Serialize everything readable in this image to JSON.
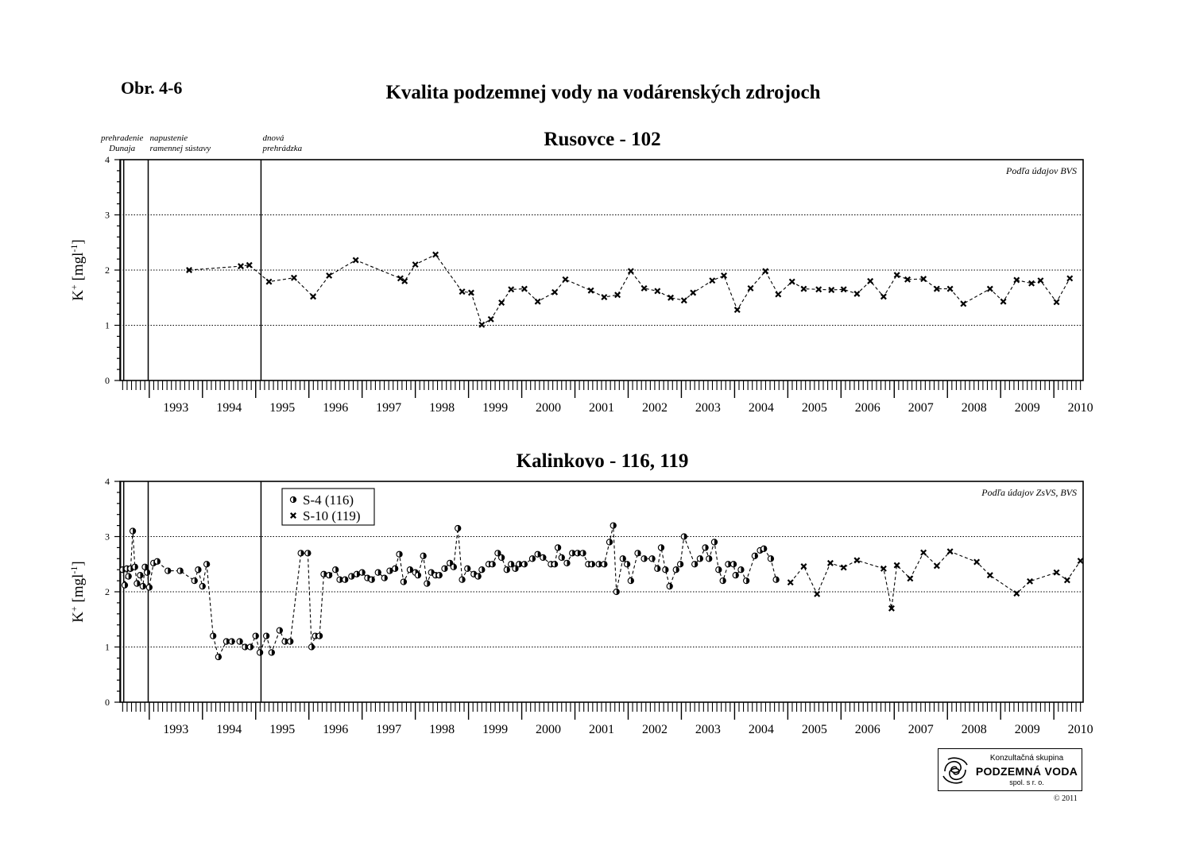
{
  "header": {
    "figure_label": "Obr. 4-6",
    "title": "Kvalita podzemnej vody na vodárenských zdrojoch"
  },
  "logo": {
    "line1": "Konzultačná skupina",
    "line2": "PODZEMNÁ VODA",
    "line3": "spol. s r. o.",
    "icon": "aquifer-logo-icon"
  },
  "copyright": "© 2011",
  "colors": {
    "ink": "#000000",
    "background": "#ffffff"
  },
  "chart_data": [
    {
      "type": "line",
      "title": "Rusovce - 102",
      "ylabel": "K",
      "ylabel_sup": "+",
      "ylabel_unit": "[mgl",
      "ylabel_unit_sup": "-1",
      "ylabel_tail": "]",
      "ylim": [
        0,
        4
      ],
      "yticks": [
        "0",
        "1",
        "2",
        "3",
        "4"
      ],
      "xlim": [
        1992.45,
        2010.55
      ],
      "xticks": [
        "1993",
        "1994",
        "1995",
        "1996",
        "1997",
        "1998",
        "1999",
        "2000",
        "2001",
        "2002",
        "2003",
        "2004",
        "2005",
        "2006",
        "2007",
        "2008",
        "2009",
        "2010"
      ],
      "grid": "horizontal-dotted",
      "source_note": "Podľa údajov BVS",
      "events": [
        {
          "x": 1992.52,
          "line1": "prehradenie",
          "line2": "Dunaja"
        },
        {
          "x": 1992.98,
          "line1": "napustenie",
          "line2": "ramennej sústavy"
        },
        {
          "x": 1995.1,
          "line1": "dnová",
          "line2": "prehrádzka"
        }
      ],
      "legend": [],
      "series": [
        {
          "marker": "cross",
          "line": "dashed",
          "points": [
            [
              1993.75,
              2.0
            ],
            [
              1994.72,
              2.07
            ],
            [
              1994.88,
              2.09
            ],
            [
              1995.25,
              1.79
            ],
            [
              1995.72,
              1.86
            ],
            [
              1996.08,
              1.52
            ],
            [
              1996.38,
              1.9
            ],
            [
              1996.88,
              2.18
            ],
            [
              1997.72,
              1.85
            ],
            [
              1997.8,
              1.8
            ],
            [
              1998.0,
              2.1
            ],
            [
              1998.38,
              2.28
            ],
            [
              1998.88,
              1.61
            ],
            [
              1999.05,
              1.59
            ],
            [
              1999.25,
              1.01
            ],
            [
              1999.42,
              1.11
            ],
            [
              1999.62,
              1.41
            ],
            [
              1999.8,
              1.65
            ],
            [
              2000.05,
              1.66
            ],
            [
              2000.3,
              1.43
            ],
            [
              2000.62,
              1.6
            ],
            [
              2000.82,
              1.83
            ],
            [
              2001.3,
              1.63
            ],
            [
              2001.55,
              1.51
            ],
            [
              2001.8,
              1.55
            ],
            [
              2002.05,
              1.98
            ],
            [
              2002.3,
              1.67
            ],
            [
              2002.55,
              1.62
            ],
            [
              2002.8,
              1.5
            ],
            [
              2003.05,
              1.45
            ],
            [
              2003.22,
              1.59
            ],
            [
              2003.58,
              1.81
            ],
            [
              2003.8,
              1.9
            ],
            [
              2004.05,
              1.28
            ],
            [
              2004.3,
              1.67
            ],
            [
              2004.58,
              1.98
            ],
            [
              2004.82,
              1.56
            ],
            [
              2005.08,
              1.79
            ],
            [
              2005.3,
              1.66
            ],
            [
              2005.58,
              1.65
            ],
            [
              2005.82,
              1.64
            ],
            [
              2006.05,
              1.65
            ],
            [
              2006.3,
              1.57
            ],
            [
              2006.55,
              1.8
            ],
            [
              2006.8,
              1.52
            ],
            [
              2007.05,
              1.91
            ],
            [
              2007.25,
              1.83
            ],
            [
              2007.55,
              1.84
            ],
            [
              2007.8,
              1.66
            ],
            [
              2008.05,
              1.66
            ],
            [
              2008.3,
              1.39
            ],
            [
              2008.8,
              1.66
            ],
            [
              2009.05,
              1.43
            ],
            [
              2009.3,
              1.82
            ],
            [
              2009.58,
              1.76
            ],
            [
              2009.75,
              1.81
            ],
            [
              2010.05,
              1.42
            ],
            [
              2010.3,
              1.85
            ]
          ]
        }
      ]
    },
    {
      "type": "line",
      "title": "Kalinkovo - 116, 119",
      "ylabel": "K",
      "ylabel_sup": "+",
      "ylabel_unit": "[mgl",
      "ylabel_unit_sup": "-1",
      "ylabel_tail": "]",
      "ylim": [
        0,
        4
      ],
      "yticks": [
        "0",
        "1",
        "2",
        "3",
        "4"
      ],
      "xlim": [
        1992.45,
        2010.55
      ],
      "xticks": [
        "1993",
        "1994",
        "1995",
        "1996",
        "1997",
        "1998",
        "1999",
        "2000",
        "2001",
        "2002",
        "2003",
        "2004",
        "2005",
        "2006",
        "2007",
        "2008",
        "2009",
        "2010"
      ],
      "grid": "horizontal-dotted",
      "source_note": "Podľa údajov ZsVS, BVS",
      "events": [
        {
          "x": 1992.52
        },
        {
          "x": 1992.98
        },
        {
          "x": 1995.1
        }
      ],
      "legend": [
        "S-4 (116)",
        "S-10 (119)"
      ],
      "series": [
        {
          "name": "S-4 (116)",
          "marker": "half-circle",
          "line": "dashed",
          "points": [
            [
              1992.5,
              2.4
            ],
            [
              1992.54,
              2.12
            ],
            [
              1992.58,
              2.42
            ],
            [
              1992.61,
              2.28
            ],
            [
              1992.65,
              2.42
            ],
            [
              1992.69,
              3.1
            ],
            [
              1992.73,
              2.45
            ],
            [
              1992.77,
              2.15
            ],
            [
              1992.83,
              2.3
            ],
            [
              1992.88,
              2.1
            ],
            [
              1992.92,
              2.45
            ],
            [
              1992.96,
              2.35
            ],
            [
              1993.0,
              2.08
            ],
            [
              1993.08,
              2.52
            ],
            [
              1993.15,
              2.55
            ],
            [
              1993.35,
              2.38
            ],
            [
              1993.58,
              2.38
            ],
            [
              1993.85,
              2.2
            ],
            [
              1993.92,
              2.4
            ],
            [
              1994.0,
              2.1
            ],
            [
              1994.08,
              2.5
            ],
            [
              1994.2,
              1.2
            ],
            [
              1994.3,
              0.82
            ],
            [
              1994.45,
              1.1
            ],
            [
              1994.55,
              1.1
            ],
            [
              1994.7,
              1.1
            ],
            [
              1994.8,
              1.0
            ],
            [
              1994.9,
              1.0
            ],
            [
              1995.0,
              1.2
            ],
            [
              1995.08,
              0.9
            ],
            [
              1995.2,
              1.2
            ],
            [
              1995.3,
              0.9
            ],
            [
              1995.45,
              1.3
            ],
            [
              1995.55,
              1.1
            ],
            [
              1995.65,
              1.1
            ],
            [
              1995.85,
              2.7
            ],
            [
              1995.98,
              2.7
            ],
            [
              1996.05,
              1.0
            ],
            [
              1996.12,
              1.2
            ],
            [
              1996.2,
              1.2
            ],
            [
              1996.28,
              2.32
            ],
            [
              1996.38,
              2.3
            ],
            [
              1996.5,
              2.4
            ],
            [
              1996.58,
              2.22
            ],
            [
              1996.68,
              2.22
            ],
            [
              1996.8,
              2.28
            ],
            [
              1996.9,
              2.32
            ],
            [
              1997.0,
              2.35
            ],
            [
              1997.1,
              2.25
            ],
            [
              1997.18,
              2.22
            ],
            [
              1997.3,
              2.35
            ],
            [
              1997.42,
              2.25
            ],
            [
              1997.52,
              2.38
            ],
            [
              1997.62,
              2.42
            ],
            [
              1997.7,
              2.68
            ],
            [
              1997.78,
              2.18
            ],
            [
              1997.9,
              2.4
            ],
            [
              1998.0,
              2.35
            ],
            [
              1998.05,
              2.3
            ],
            [
              1998.15,
              2.65
            ],
            [
              1998.22,
              2.15
            ],
            [
              1998.3,
              2.35
            ],
            [
              1998.38,
              2.3
            ],
            [
              1998.45,
              2.3
            ],
            [
              1998.55,
              2.42
            ],
            [
              1998.65,
              2.52
            ],
            [
              1998.72,
              2.45
            ],
            [
              1998.8,
              3.15
            ],
            [
              1998.88,
              2.22
            ],
            [
              1998.98,
              2.42
            ],
            [
              1999.1,
              2.32
            ],
            [
              1999.18,
              2.28
            ],
            [
              1999.25,
              2.4
            ],
            [
              1999.38,
              2.5
            ],
            [
              1999.45,
              2.5
            ],
            [
              1999.55,
              2.7
            ],
            [
              1999.62,
              2.62
            ],
            [
              1999.72,
              2.4
            ],
            [
              1999.8,
              2.5
            ],
            [
              1999.88,
              2.42
            ],
            [
              1999.95,
              2.5
            ],
            [
              2000.05,
              2.5
            ],
            [
              2000.2,
              2.6
            ],
            [
              2000.3,
              2.68
            ],
            [
              2000.4,
              2.62
            ],
            [
              2000.55,
              2.5
            ],
            [
              2000.62,
              2.5
            ],
            [
              2000.68,
              2.8
            ],
            [
              2000.75,
              2.62
            ],
            [
              2000.85,
              2.52
            ],
            [
              2000.95,
              2.7
            ],
            [
              2001.05,
              2.7
            ],
            [
              2001.15,
              2.7
            ],
            [
              2001.25,
              2.5
            ],
            [
              2001.32,
              2.5
            ],
            [
              2001.45,
              2.5
            ],
            [
              2001.55,
              2.5
            ],
            [
              2001.65,
              2.9
            ],
            [
              2001.72,
              3.2
            ],
            [
              2001.78,
              2.0
            ],
            [
              2001.9,
              2.6
            ],
            [
              2001.98,
              2.5
            ],
            [
              2002.05,
              2.2
            ],
            [
              2002.18,
              2.7
            ],
            [
              2002.3,
              2.6
            ],
            [
              2002.45,
              2.6
            ],
            [
              2002.55,
              2.42
            ],
            [
              2002.62,
              2.8
            ],
            [
              2002.7,
              2.4
            ],
            [
              2002.78,
              2.1
            ],
            [
              2002.9,
              2.4
            ],
            [
              2002.98,
              2.5
            ],
            [
              2003.05,
              3.0
            ],
            [
              2003.25,
              2.5
            ],
            [
              2003.35,
              2.6
            ],
            [
              2003.45,
              2.8
            ],
            [
              2003.52,
              2.6
            ],
            [
              2003.62,
              2.9
            ],
            [
              2003.7,
              2.4
            ],
            [
              2003.78,
              2.2
            ],
            [
              2003.88,
              2.5
            ],
            [
              2003.98,
              2.5
            ],
            [
              2004.02,
              2.3
            ],
            [
              2004.12,
              2.4
            ],
            [
              2004.22,
              2.2
            ],
            [
              2004.38,
              2.65
            ],
            [
              2004.48,
              2.75
            ],
            [
              2004.55,
              2.78
            ],
            [
              2004.68,
              2.6
            ],
            [
              2004.78,
              2.22
            ]
          ]
        },
        {
          "name": "S-10 (119)",
          "marker": "cross",
          "line": "dashed",
          "points": [
            [
              2005.05,
              2.17
            ],
            [
              2005.3,
              2.46
            ],
            [
              2005.55,
              1.96
            ],
            [
              2005.8,
              2.52
            ],
            [
              2006.05,
              2.44
            ],
            [
              2006.3,
              2.57
            ],
            [
              2006.8,
              2.42
            ],
            [
              2006.95,
              1.7
            ],
            [
              2007.05,
              2.48
            ],
            [
              2007.3,
              2.24
            ],
            [
              2007.55,
              2.71
            ],
            [
              2007.8,
              2.47
            ],
            [
              2008.05,
              2.73
            ],
            [
              2008.55,
              2.54
            ],
            [
              2008.8,
              2.3
            ],
            [
              2009.3,
              1.97
            ],
            [
              2009.55,
              2.19
            ],
            [
              2010.05,
              2.35
            ],
            [
              2010.25,
              2.21
            ],
            [
              2010.5,
              2.56
            ]
          ]
        }
      ]
    }
  ]
}
